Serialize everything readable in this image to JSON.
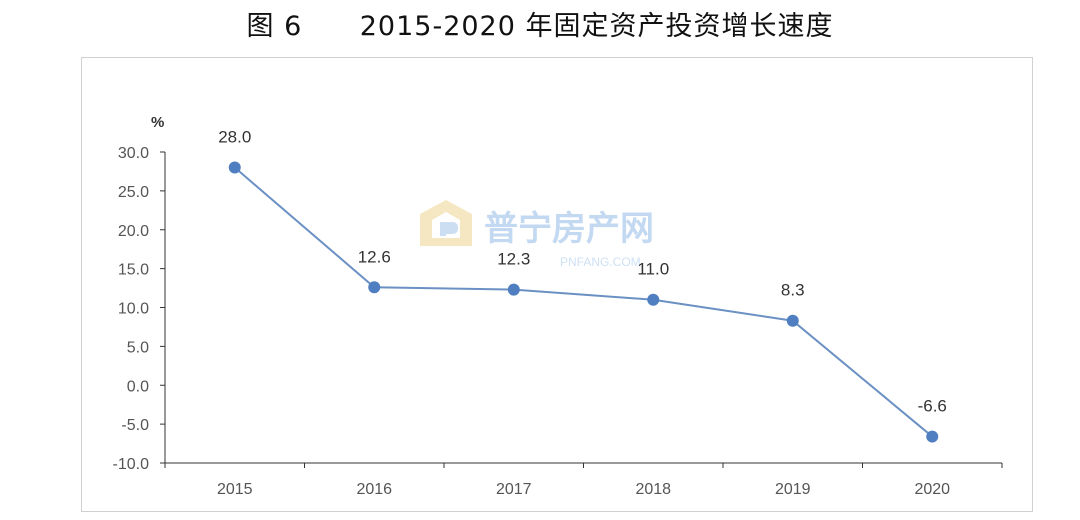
{
  "figure": {
    "number": "图 6",
    "title": "2015-2020 年固定资产投资增长速度"
  },
  "watermark": {
    "name": "普宁房产网",
    "url": "PNFANG.COM"
  },
  "chart_data": {
    "type": "line",
    "unit_label": "%",
    "categories": [
      "2015",
      "2016",
      "2017",
      "2018",
      "2019",
      "2020"
    ],
    "values": [
      28.0,
      12.6,
      12.3,
      11.0,
      8.3,
      -6.6
    ],
    "data_labels": [
      "28.0",
      "12.6",
      "12.3",
      "11.0",
      "8.3",
      "-6.6"
    ],
    "y_ticks": [
      "30.0",
      "25.0",
      "20.0",
      "15.0",
      "10.0",
      "5.0",
      "0.0",
      "-5.0",
      "-10.0"
    ],
    "ylim": [
      -10,
      30
    ],
    "grid": false,
    "colors": {
      "line": "#6a90c4",
      "marker": "#4f7fc1"
    }
  }
}
